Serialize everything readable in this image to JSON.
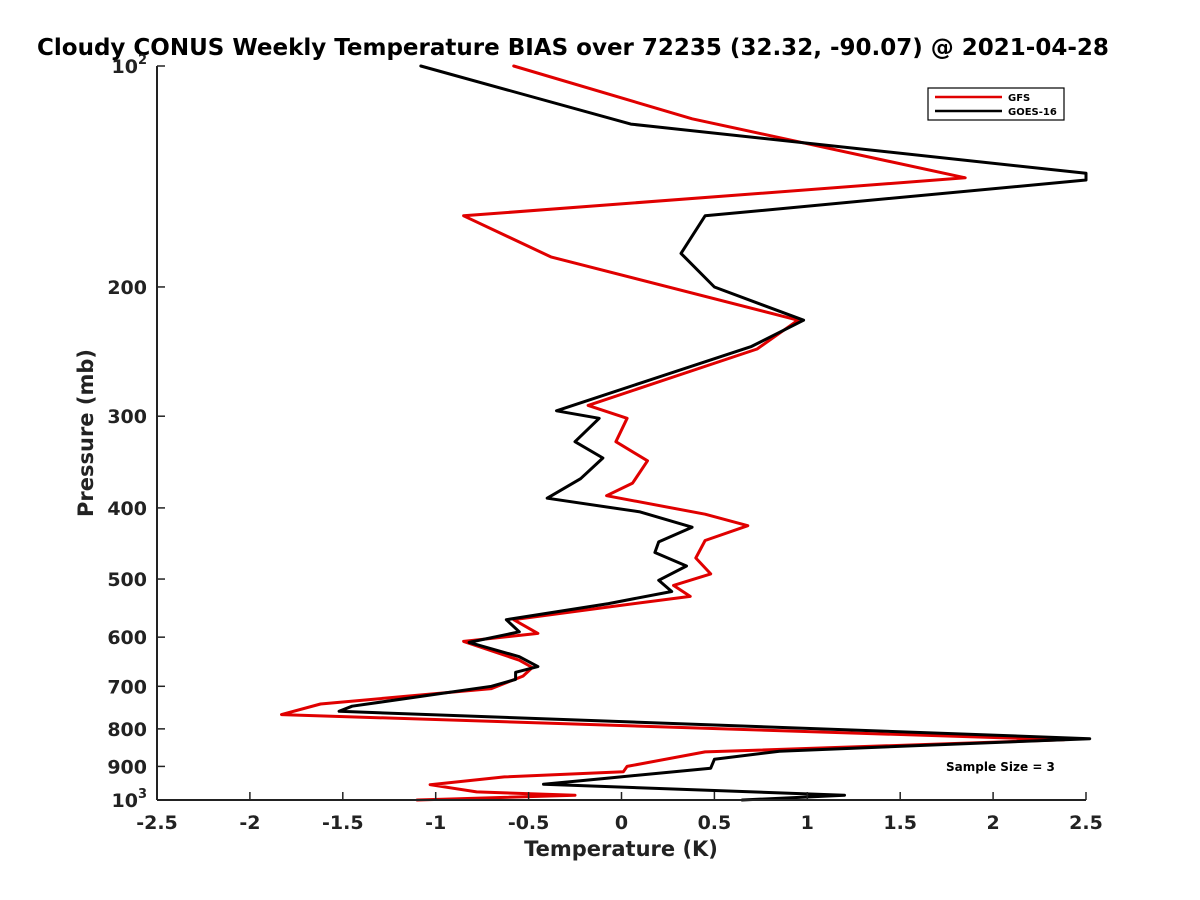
{
  "chart_data": {
    "type": "line",
    "title": "Cloudy CONUS Weekly Temperature BIAS over 72235 (32.32, -90.07) @ 2021-04-28",
    "xlabel": "Temperature (K)",
    "ylabel": "Pressure (mb)",
    "xlim": [
      -2.5,
      2.5
    ],
    "ylim": [
      100,
      1000
    ],
    "y_scale": "log",
    "y_reversed": true,
    "grid": false,
    "legend_position": "top-right",
    "x_ticks": [
      "-2.5",
      "-2",
      "-1.5",
      "-1",
      "-0.5",
      "0",
      "0.5",
      "1",
      "1.5",
      "2",
      "2.5"
    ],
    "y_ticks": [
      {
        "value": 100,
        "label": "10",
        "sup": "2"
      },
      {
        "value": 200,
        "label": "200",
        "sup": ""
      },
      {
        "value": 300,
        "label": "300",
        "sup": ""
      },
      {
        "value": 400,
        "label": "400",
        "sup": ""
      },
      {
        "value": 500,
        "label": "500",
        "sup": ""
      },
      {
        "value": 600,
        "label": "600",
        "sup": ""
      },
      {
        "value": 700,
        "label": "700",
        "sup": ""
      },
      {
        "value": 800,
        "label": "800",
        "sup": ""
      },
      {
        "value": 900,
        "label": "900",
        "sup": ""
      },
      {
        "value": 1000,
        "label": "10",
        "sup": "3"
      }
    ],
    "annotation": "Sample Size = 3",
    "series": [
      {
        "name": "GFS",
        "color": "#e00000",
        "points": [
          [
            -0.58,
            100
          ],
          [
            0.38,
            118
          ],
          [
            1.85,
            142
          ],
          [
            -0.85,
            160
          ],
          [
            -0.38,
            182
          ],
          [
            0.95,
            222
          ],
          [
            0.73,
            243
          ],
          [
            -0.18,
            290
          ],
          [
            0.03,
            302
          ],
          [
            -0.03,
            325
          ],
          [
            0.14,
            345
          ],
          [
            0.06,
            370
          ],
          [
            -0.08,
            385
          ],
          [
            0.45,
            408
          ],
          [
            0.68,
            423
          ],
          [
            0.45,
            443
          ],
          [
            0.4,
            468
          ],
          [
            0.48,
            492
          ],
          [
            0.28,
            510
          ],
          [
            0.37,
            528
          ],
          [
            -0.05,
            545
          ],
          [
            -0.58,
            568
          ],
          [
            -0.45,
            593
          ],
          [
            -0.85,
            608
          ],
          [
            -0.55,
            645
          ],
          [
            -0.48,
            660
          ],
          [
            -0.53,
            678
          ],
          [
            -0.7,
            705
          ],
          [
            -1.62,
            740
          ],
          [
            -1.83,
            765
          ],
          [
            2.38,
            828
          ],
          [
            0.45,
            860
          ],
          [
            0.03,
            900
          ],
          [
            0.01,
            915
          ],
          [
            -0.63,
            930
          ],
          [
            -1.03,
            953
          ],
          [
            -0.78,
            975
          ],
          [
            -0.25,
            985
          ],
          [
            -1.1,
            1000
          ]
        ]
      },
      {
        "name": "GOES-16",
        "color": "#000000",
        "points": [
          [
            -1.08,
            100
          ],
          [
            0.05,
            120
          ],
          [
            2.5,
            140
          ],
          [
            2.5,
            143
          ],
          [
            0.45,
            160
          ],
          [
            0.32,
            180
          ],
          [
            0.5,
            200
          ],
          [
            0.98,
            222
          ],
          [
            0.7,
            241
          ],
          [
            -0.35,
            295
          ],
          [
            -0.12,
            302
          ],
          [
            -0.25,
            325
          ],
          [
            -0.1,
            342
          ],
          [
            -0.22,
            365
          ],
          [
            -0.4,
            388
          ],
          [
            0.1,
            405
          ],
          [
            0.38,
            425
          ],
          [
            0.2,
            445
          ],
          [
            0.18,
            460
          ],
          [
            0.35,
            480
          ],
          [
            0.2,
            502
          ],
          [
            0.27,
            520
          ],
          [
            -0.07,
            540
          ],
          [
            -0.62,
            568
          ],
          [
            -0.55,
            590
          ],
          [
            -0.82,
            610
          ],
          [
            -0.55,
            638
          ],
          [
            -0.45,
            658
          ],
          [
            -0.57,
            670
          ],
          [
            -0.57,
            685
          ],
          [
            -0.7,
            700
          ],
          [
            -1.45,
            745
          ],
          [
            -1.52,
            757
          ],
          [
            2.52,
            825
          ],
          [
            0.85,
            858
          ],
          [
            0.5,
            880
          ],
          [
            0.48,
            905
          ],
          [
            -0.1,
            935
          ],
          [
            -0.42,
            952
          ],
          [
            1.2,
            985
          ],
          [
            0.65,
            1000
          ]
        ]
      }
    ]
  }
}
